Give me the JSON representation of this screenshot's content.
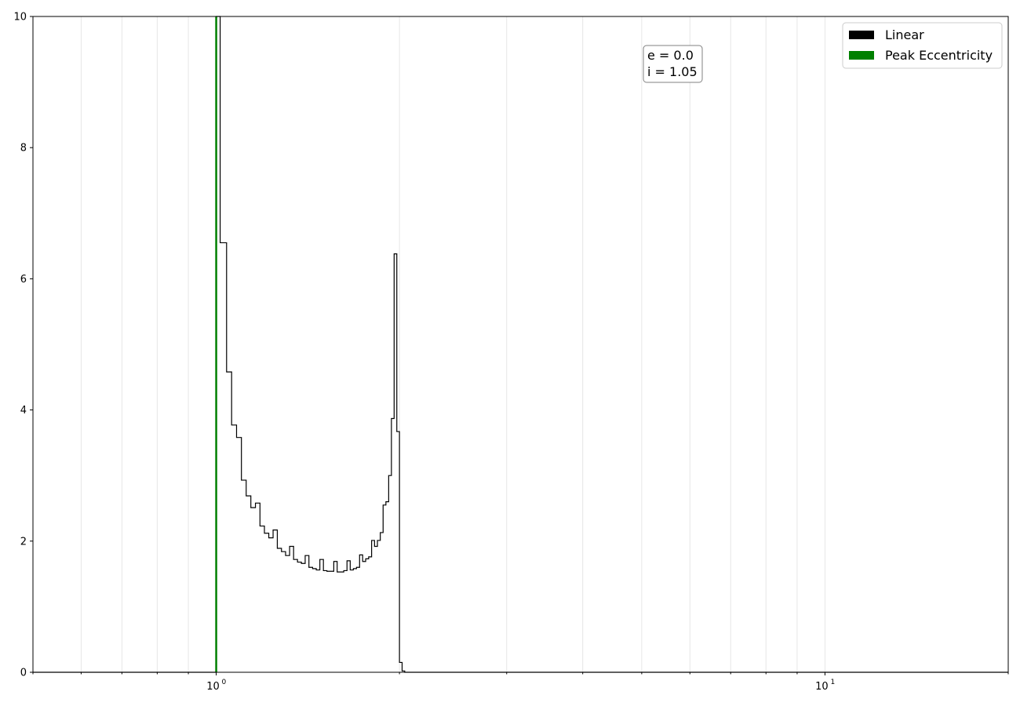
{
  "chart_data": {
    "type": "line",
    "x_scale": "log",
    "xlim": [
      0.5,
      20
    ],
    "ylim": [
      0,
      10
    ],
    "xlabel": "",
    "ylabel": "",
    "grid": "x-minor-and-major",
    "legend_placement": "top-right",
    "y_ticks": [
      "0",
      "2",
      "4",
      "6",
      "8",
      "10"
    ],
    "x_ticks": [
      {
        "value": 1,
        "base": "10",
        "exp": "0"
      },
      {
        "value": 10,
        "base": "10",
        "exp": "1"
      }
    ],
    "annotation": {
      "line1": "e = 0.0",
      "line2": "i = 1.05"
    },
    "series": [
      {
        "name": "Linear",
        "style": "step",
        "color": "#000000",
        "edges": [
          0.5,
          1.0,
          1.015,
          1.04,
          1.06,
          1.08,
          1.1,
          1.12,
          1.14,
          1.16,
          1.18,
          1.2,
          1.22,
          1.24,
          1.26,
          1.28,
          1.3,
          1.32,
          1.34,
          1.36,
          1.38,
          1.4,
          1.42,
          1.44,
          1.46,
          1.48,
          1.5,
          1.52,
          1.54,
          1.56,
          1.58,
          1.6,
          1.62,
          1.64,
          1.66,
          1.68,
          1.7,
          1.72,
          1.74,
          1.76,
          1.78,
          1.8,
          1.82,
          1.84,
          1.86,
          1.88,
          1.9,
          1.92,
          1.94,
          1.96,
          1.98,
          2.0,
          2.02,
          2.04,
          20
        ],
        "values": [
          0,
          10,
          6.55,
          4.58,
          3.77,
          3.58,
          2.93,
          2.69,
          2.51,
          2.58,
          2.23,
          2.12,
          2.05,
          2.17,
          1.89,
          1.84,
          1.78,
          1.92,
          1.72,
          1.68,
          1.66,
          1.78,
          1.6,
          1.58,
          1.56,
          1.72,
          1.55,
          1.54,
          1.54,
          1.69,
          1.53,
          1.53,
          1.55,
          1.7,
          1.56,
          1.58,
          1.6,
          1.79,
          1.69,
          1.73,
          1.76,
          2.01,
          1.92,
          2.01,
          2.13,
          2.55,
          2.6,
          3.0,
          3.87,
          6.38,
          3.67,
          0.15,
          0.02,
          0
        ]
      },
      {
        "name": "Peak Eccentricity",
        "style": "vline",
        "color": "#008000",
        "x": 1.0
      }
    ]
  }
}
